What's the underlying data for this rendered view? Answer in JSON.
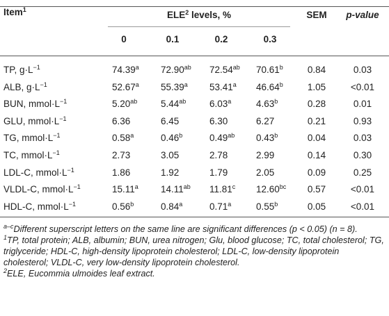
{
  "table": {
    "header": {
      "item": {
        "text": "Item",
        "sup": "1"
      },
      "group": {
        "text": "ELE",
        "sup": "2",
        "suffix": " levels, %"
      },
      "levels": [
        "0",
        "0.1",
        "0.2",
        "0.3"
      ],
      "sem": "SEM",
      "p": "p-value"
    },
    "rows": [
      {
        "label": "TP, g·L",
        "unit_sup": "−1",
        "cells": [
          {
            "v": "74.39",
            "s": "a"
          },
          {
            "v": "72.90",
            "s": "ab"
          },
          {
            "v": "72.54",
            "s": "ab"
          },
          {
            "v": "70.61",
            "s": "b"
          }
        ],
        "sem": "0.84",
        "p": "0.03"
      },
      {
        "label": "ALB, g·L",
        "unit_sup": "−1",
        "cells": [
          {
            "v": "52.67",
            "s": "a"
          },
          {
            "v": "55.39",
            "s": "a"
          },
          {
            "v": "53.41",
            "s": "a"
          },
          {
            "v": "46.64",
            "s": "b"
          }
        ],
        "sem": "1.05",
        "p": "<0.01"
      },
      {
        "label": "BUN, mmol·L",
        "unit_sup": "−1",
        "cells": [
          {
            "v": "5.20",
            "s": "ab"
          },
          {
            "v": "5.44",
            "s": "ab"
          },
          {
            "v": "6.03",
            "s": "a"
          },
          {
            "v": "4.63",
            "s": "b"
          }
        ],
        "sem": "0.28",
        "p": "0.01"
      },
      {
        "label": "GLU, mmol·L",
        "unit_sup": "−1",
        "cells": [
          {
            "v": "6.36"
          },
          {
            "v": "6.45"
          },
          {
            "v": "6.30"
          },
          {
            "v": "6.27"
          }
        ],
        "sem": "0.21",
        "p": "0.93"
      },
      {
        "label": "TG, mmol·L",
        "unit_sup": "−1",
        "cells": [
          {
            "v": "0.58",
            "s": "a"
          },
          {
            "v": "0.46",
            "s": "b"
          },
          {
            "v": "0.49",
            "s": "ab"
          },
          {
            "v": "0.43",
            "s": "b"
          }
        ],
        "sem": "0.04",
        "p": "0.03"
      },
      {
        "label": "TC, mmol·L",
        "unit_sup": "−1",
        "cells": [
          {
            "v": "2.73"
          },
          {
            "v": "3.05"
          },
          {
            "v": "2.78"
          },
          {
            "v": "2.99"
          }
        ],
        "sem": "0.14",
        "p": "0.30"
      },
      {
        "label": "LDL-C, mmol·L",
        "unit_sup": "−1",
        "cells": [
          {
            "v": "1.86"
          },
          {
            "v": "1.92"
          },
          {
            "v": "1.79"
          },
          {
            "v": "2.05"
          }
        ],
        "sem": "0.09",
        "p": "0.25"
      },
      {
        "label": "VLDL-C, mmol·L",
        "unit_sup": "−1",
        "cells": [
          {
            "v": "15.11",
            "s": "a"
          },
          {
            "v": "14.11",
            "s": "ab"
          },
          {
            "v": "11.81",
            "s": "c"
          },
          {
            "v": "12.60",
            "s": "bc"
          }
        ],
        "sem": "0.57",
        "p": "<0.01"
      },
      {
        "label": "HDL-C, mmol·L",
        "unit_sup": "−1",
        "cells": [
          {
            "v": "0.56",
            "s": "b"
          },
          {
            "v": "0.84",
            "s": "a"
          },
          {
            "v": "0.71",
            "s": "a"
          },
          {
            "v": "0.55",
            "s": "b"
          }
        ],
        "sem": "0.05",
        "p": "<0.01"
      }
    ]
  },
  "footnotes": [
    {
      "sup": "a–c",
      "text": "Different superscript letters on the same line are significant differences (p < 0.05) (n = 8)."
    },
    {
      "sup": "1",
      "text": "TP, total protein; ALB, albumin; BUN, urea nitrogen; Glu, blood glucose; TC, total cholesterol; TG, triglyceride; HDL-C, high-density lipoprotein cholesterol; LDL-C, low-density lipoprotein cholesterol; VLDL-C, very low-density lipoprotein cholesterol."
    },
    {
      "sup": "2",
      "text": "ELE, Eucommia ulmoides leaf extract."
    }
  ]
}
